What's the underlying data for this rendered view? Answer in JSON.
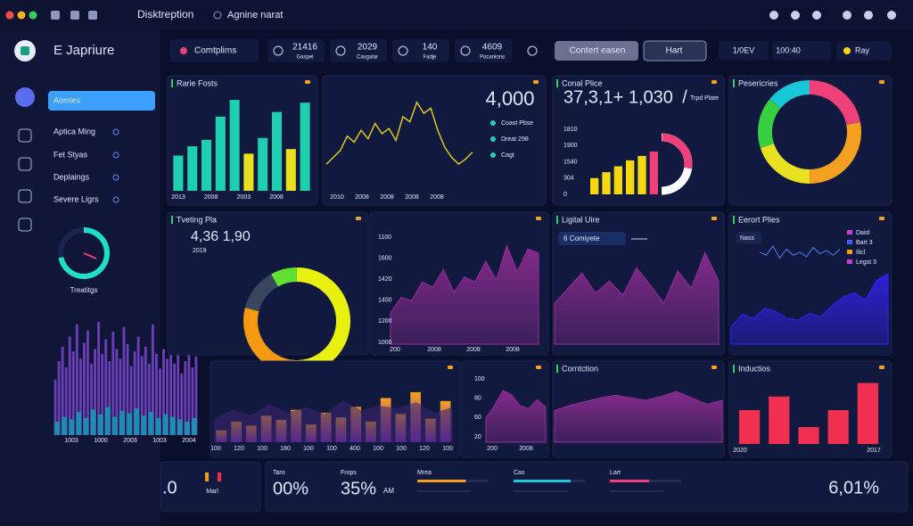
{
  "topbar": {
    "title": "Disktreption",
    "search": "Agnine narat"
  },
  "sidebar": {
    "brand": "E Japriure",
    "nav": [
      "Aomies",
      "Aptica Ming",
      "Fet Styas",
      "Deplaings",
      "Severe Ligrs"
    ],
    "gauge": {
      "label": "Treatitgs",
      "value": 72,
      "color": "#1ee0c8"
    },
    "chart": {
      "type": "bar",
      "series": [
        {
          "color": "#6b3fb8",
          "values": [
            45,
            60,
            72,
            55,
            80,
            68,
            90,
            62,
            75,
            85,
            58,
            70,
            92,
            66,
            78,
            60,
            84,
            70,
            62,
            88,
            74,
            56,
            68,
            80,
            64,
            72,
            58,
            90,
            66,
            54,
            70,
            62,
            76,
            58,
            66,
            50,
            60,
            72,
            55,
            64
          ]
        },
        {
          "color": "#1b8fb0",
          "values": [
            22,
            30,
            26,
            38,
            28,
            42,
            34,
            46,
            30,
            40,
            36,
            44,
            32,
            38,
            28,
            34,
            30,
            26,
            22,
            28
          ]
        }
      ],
      "ylim": [
        0,
        100
      ],
      "x_labels": [
        "1003",
        "1000",
        "2003",
        "1003",
        "2004"
      ]
    }
  },
  "toolbar": {
    "filter": "Comtplims",
    "stats": [
      {
        "value": "21416",
        "label": "Gaspel"
      },
      {
        "value": "2029",
        "label": "Caxgalar"
      },
      {
        "value": "140",
        "label": "Fadje"
      },
      {
        "value": "4609",
        "label": "Pocanions"
      }
    ],
    "button1": "Contert easen",
    "button2": "Hart",
    "stat_a": "1/0EV",
    "stat_b": "100:40",
    "ray": "Ray"
  },
  "panels": [
    {
      "title": "Rarie Fosts",
      "chart": {
        "type": "bar",
        "values": [
          38,
          48,
          55,
          80,
          98,
          40,
          57,
          85,
          45,
          95
        ],
        "colors": [
          "#1ecfb0",
          "#1ecfb0",
          "#1ecfb0",
          "#1ecfb0",
          "#1ecfb0",
          "#e8e020",
          "#1ecfb0",
          "#1ecfb0",
          "#e8e020",
          "#1ecfb0"
        ],
        "ylim": [
          0,
          100
        ],
        "x_labels": [
          "2013",
          "2008",
          "2003",
          "2008"
        ]
      }
    },
    {
      "headline": "4,000",
      "legend": [
        "Coast Pbse",
        "Dreat 298",
        "Cagt"
      ],
      "legend_color": "#1ecfc0",
      "chart": {
        "type": "line",
        "values": [
          22,
          30,
          38,
          55,
          48,
          62,
          52,
          70,
          58,
          64,
          50,
          78,
          72,
          95,
          82,
          88,
          62,
          42,
          30,
          22,
          28,
          36
        ],
        "color": "#e6d21c",
        "ylim": [
          0,
          100
        ],
        "x_labels": [
          "2010",
          "2008",
          "2008",
          "2008",
          "2008"
        ]
      }
    },
    {
      "title": "Conal Plice",
      "headline": "37,3,1+ 1,030",
      "slash": "/",
      "note": "Trpd Plate",
      "y_labels": [
        "1810",
        "1900",
        "1540",
        "304",
        "0"
      ],
      "chart": {
        "type": "bar",
        "values": [
          22,
          30,
          38,
          46,
          52,
          58
        ],
        "colors": [
          "#f5d80f",
          "#f5d80f",
          "#f5d80f",
          "#f5d80f",
          "#f5d80f",
          "#f0407a"
        ],
        "ylim": [
          0,
          70
        ]
      },
      "gauge": {
        "value": 55,
        "color": "#f0407a"
      }
    },
    {
      "title": "Pesericries",
      "chart": {
        "type": "donut",
        "values": [
          22,
          28,
          20,
          16,
          14
        ],
        "colors": [
          "#f0407a",
          "#f5a020",
          "#e8e020",
          "#38d040",
          "#18c8d8"
        ]
      }
    },
    {
      "title": "Tveting Pla",
      "headline": "4,36 1,90",
      "sub": "2019",
      "chart": {
        "type": "donut",
        "values": [
          52,
          27,
          13,
          8
        ],
        "colors": [
          "#e8f010",
          "#f59a10",
          "#3a4660",
          "#60e030"
        ]
      }
    },
    {
      "y_labels": [
        "1100",
        "1600",
        "1420",
        "1400",
        "1200",
        "1000"
      ],
      "chart": {
        "type": "area",
        "values": [
          30,
          45,
          42,
          60,
          55,
          72,
          50,
          65,
          60,
          80,
          62,
          95,
          70,
          92,
          88
        ],
        "color": "#8a2b8f",
        "ylim": [
          0,
          100
        ],
        "x_labels": [
          "200",
          "2008",
          "2008",
          "2008"
        ]
      }
    },
    {
      "title": "Ligital Uire",
      "chip": "6 Comiyete",
      "chart": {
        "type": "area",
        "values": [
          40,
          55,
          70,
          50,
          62,
          48,
          75,
          58,
          40,
          72,
          55,
          90,
          62
        ],
        "color": "#8a2b8f",
        "ylim": [
          0,
          100
        ]
      }
    },
    {
      "title": "Eerort Plies",
      "chip": "Nass",
      "legend": [
        "Daisl",
        "Bart 3",
        "Ilicl",
        "Legst 3"
      ],
      "legend_colors": [
        "#c040d0",
        "#4060ff",
        "#f5a020",
        "#c040d0"
      ],
      "chart": {
        "type": "area",
        "values": [
          20,
          35,
          30,
          42,
          38,
          30,
          28,
          36,
          32,
          45,
          55,
          60,
          52,
          75,
          82
        ],
        "color": "#3020e0",
        "ylim": [
          0,
          100
        ],
        "line": [
          60,
          58,
          64,
          56,
          62,
          58,
          60,
          57,
          63,
          59,
          61,
          58,
          62
        ]
      }
    },
    {
      "chart": {
        "type": "bar",
        "values": [
          20,
          35,
          28,
          45,
          38,
          55,
          30,
          50,
          42,
          60,
          35,
          75,
          48,
          85,
          40,
          70
        ],
        "gradient": [
          "#f5a020",
          "#7a2bc0"
        ],
        "ylim": [
          0,
          100
        ],
        "x_labels": [
          "100",
          "120",
          "100",
          "180",
          "100",
          "100",
          "400",
          "100",
          "100",
          "120",
          "100"
        ]
      },
      "backdrop": [
        40,
        55,
        45,
        65,
        50,
        60,
        48,
        70,
        55,
        62,
        58,
        68,
        50,
        60
      ]
    },
    {
      "y_labels": [
        "100",
        "80",
        "60",
        "20"
      ],
      "chart": {
        "type": "area",
        "values": [
          40,
          60,
          85,
          78,
          60,
          55,
          70,
          58
        ],
        "color": "#8a2b8f",
        "ylim": [
          0,
          100
        ],
        "x_labels": [
          "200",
          "2008"
        ]
      }
    },
    {
      "title": "Corntction",
      "chart": {
        "type": "area",
        "values": [
          50,
          58,
          64,
          70,
          74,
          70,
          66,
          72,
          80,
          70,
          60,
          66
        ],
        "color": "#8a2b8f",
        "ylim": [
          0,
          100
        ]
      }
    },
    {
      "title": "Inductios",
      "chart": {
        "type": "bar",
        "values": [
          50,
          70,
          25,
          50,
          90
        ],
        "color": "#f03050",
        "ylim": [
          0,
          100
        ],
        "x_labels": [
          "2020",
          "2017"
        ]
      }
    }
  ],
  "footer": {
    "left_value": ".0",
    "left_label": "Marl",
    "kpis": [
      {
        "label": "Taro",
        "value": "00%"
      },
      {
        "label": "Frops",
        "value": "35%",
        "unit": "AM"
      }
    ],
    "progress": [
      {
        "label": "Mrea",
        "value": 68,
        "color": "#f5a020"
      },
      {
        "label": "Cas",
        "value": 80,
        "color": "#1ec8e0"
      },
      {
        "label": "Lart",
        "value": 55,
        "color": "#f0407a"
      }
    ],
    "right_value": "6,01%"
  }
}
